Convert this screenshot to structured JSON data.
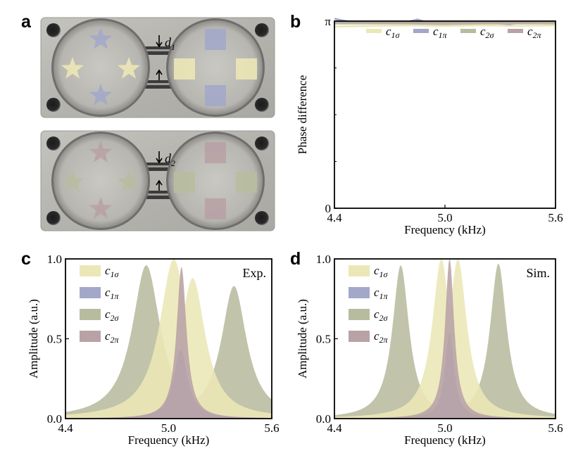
{
  "photos": {
    "top_label": "d",
    "top_sub": "1",
    "bottom_label": "d",
    "bottom_sub": "2"
  },
  "panel_labels": {
    "a": "a",
    "b": "b",
    "c": "c",
    "d": "d"
  },
  "colors": {
    "c1s": "#ece7b6",
    "c1p": "#a3a8c9",
    "c2s": "#b8bc9e",
    "c2p": "#b8a2a6",
    "metal": "#b9b8b3",
    "metal_dark": "#8c8b86",
    "star_yellow": "#ece7b6",
    "star_blue": "#a3a8c9",
    "star_green": "#b8bc9e",
    "star_pink": "#b8a2a6"
  },
  "chart_data": [
    {
      "panel": "b",
      "type": "line",
      "xlabel": "Frequency (kHz)",
      "ylabel": "Phase difference",
      "xlim": [
        4.4,
        5.6
      ],
      "ylim": [
        0,
        3.1416
      ],
      "x_ticks": [
        {
          "v": 4.4,
          "label": "4.4"
        },
        {
          "v": 5.0,
          "label": "5.0"
        },
        {
          "v": 5.6,
          "label": "5.6"
        }
      ],
      "y_ticks": [
        {
          "v": 0,
          "label": "0"
        },
        {
          "v": 3.1416,
          "label": "π"
        }
      ],
      "legend": [
        {
          "base": "c",
          "sub": "1σ",
          "key": "c1s"
        },
        {
          "base": "c",
          "sub": "1π",
          "key": "c1p"
        },
        {
          "base": "c",
          "sub": "2σ",
          "key": "c2s"
        },
        {
          "base": "c",
          "sub": "2π",
          "key": "c2p"
        }
      ],
      "series": [
        {
          "key": "c1s",
          "x": [
            4.4,
            4.6,
            4.8,
            5.0,
            5.2,
            5.4,
            5.6
          ],
          "y": [
            3.05,
            3.06,
            3.07,
            3.06,
            3.07,
            3.06,
            3.07
          ]
        },
        {
          "key": "c1p",
          "x": [
            4.4,
            4.45,
            4.5,
            4.7,
            4.8,
            4.85,
            4.9,
            5.0,
            5.2,
            5.35,
            5.4,
            5.6
          ],
          "y": [
            3.18,
            3.15,
            3.12,
            3.12,
            3.13,
            3.17,
            3.12,
            3.11,
            3.12,
            3.09,
            3.11,
            3.12
          ]
        },
        {
          "key": "c2s",
          "x": [
            4.4,
            4.6,
            4.8,
            5.0,
            5.2,
            5.4,
            5.6
          ],
          "y": [
            3.1,
            3.1,
            3.1,
            3.09,
            3.1,
            3.1,
            3.1
          ]
        },
        {
          "key": "c2p",
          "x": [
            4.4,
            4.6,
            4.8,
            5.0,
            5.2,
            5.4,
            5.6
          ],
          "y": [
            3.13,
            3.12,
            3.12,
            3.12,
            3.12,
            3.12,
            3.13
          ]
        }
      ]
    },
    {
      "panel": "c",
      "type": "area",
      "tag": "Exp.",
      "xlabel": "Frequency (kHz)",
      "ylabel": "Amplitude (a.u.)",
      "xlim": [
        4.4,
        5.6
      ],
      "ylim": [
        0,
        1.0
      ],
      "x_ticks": [
        {
          "v": 4.4,
          "label": "4.4"
        },
        {
          "v": 5.0,
          "label": "5.0"
        },
        {
          "v": 5.6,
          "label": "5.6"
        }
      ],
      "y_ticks": [
        {
          "v": 0,
          "label": "0.0"
        },
        {
          "v": 0.5,
          "label": "0.5"
        },
        {
          "v": 1.0,
          "label": "1.0"
        }
      ],
      "legend": [
        {
          "base": "c",
          "sub": "1σ",
          "key": "c1s"
        },
        {
          "base": "c",
          "sub": "1π",
          "key": "c1p"
        },
        {
          "base": "c",
          "sub": "2σ",
          "key": "c2s"
        },
        {
          "base": "c",
          "sub": "2π",
          "key": "c2p"
        }
      ],
      "series": [
        {
          "key": "c2s",
          "peaks": [
            {
              "f": 4.87,
              "a": 0.96,
              "g": 0.1
            },
            {
              "f": 5.38,
              "a": 0.83,
              "g": 0.09
            }
          ]
        },
        {
          "key": "c1s",
          "peaks": [
            {
              "f": 5.03,
              "a": 1.0,
              "g": 0.1
            },
            {
              "f": 5.14,
              "a": 0.88,
              "g": 0.09
            }
          ]
        },
        {
          "key": "c1p",
          "peaks": [
            {
              "f": 5.07,
              "a": 0.43,
              "g": 0.05
            }
          ]
        },
        {
          "key": "c2p",
          "peaks": [
            {
              "f": 5.075,
              "a": 0.95,
              "g": 0.035
            }
          ]
        }
      ]
    },
    {
      "panel": "d",
      "type": "area",
      "tag": "Sim.",
      "xlabel": "Frequency (kHz)",
      "ylabel": "Amplitude (a.u.)",
      "xlim": [
        4.4,
        5.6
      ],
      "ylim": [
        0,
        1.0
      ],
      "x_ticks": [
        {
          "v": 4.4,
          "label": "4.4"
        },
        {
          "v": 5.0,
          "label": "5.0"
        },
        {
          "v": 5.6,
          "label": "5.6"
        }
      ],
      "y_ticks": [
        {
          "v": 0,
          "label": "0.0"
        },
        {
          "v": 0.5,
          "label": "0.5"
        },
        {
          "v": 1.0,
          "label": "1.0"
        }
      ],
      "legend": [
        {
          "base": "c",
          "sub": "1σ",
          "key": "c1s"
        },
        {
          "base": "c",
          "sub": "1π",
          "key": "c1p"
        },
        {
          "base": "c",
          "sub": "2σ",
          "key": "c2s"
        },
        {
          "base": "c",
          "sub": "2π",
          "key": "c2p"
        }
      ],
      "series": [
        {
          "key": "c2s",
          "peaks": [
            {
              "f": 4.76,
              "a": 0.96,
              "g": 0.055
            },
            {
              "f": 5.29,
              "a": 0.97,
              "g": 0.055
            }
          ]
        },
        {
          "key": "c1s",
          "peaks": [
            {
              "f": 4.98,
              "a": 1.0,
              "g": 0.06
            },
            {
              "f": 5.07,
              "a": 1.0,
              "g": 0.06
            }
          ]
        },
        {
          "key": "c1p",
          "peaks": [
            {
              "f": 5.025,
              "a": 0.54,
              "g": 0.03
            }
          ]
        },
        {
          "key": "c2p",
          "peaks": [
            {
              "f": 5.025,
              "a": 1.0,
              "g": 0.03
            }
          ]
        }
      ]
    }
  ]
}
